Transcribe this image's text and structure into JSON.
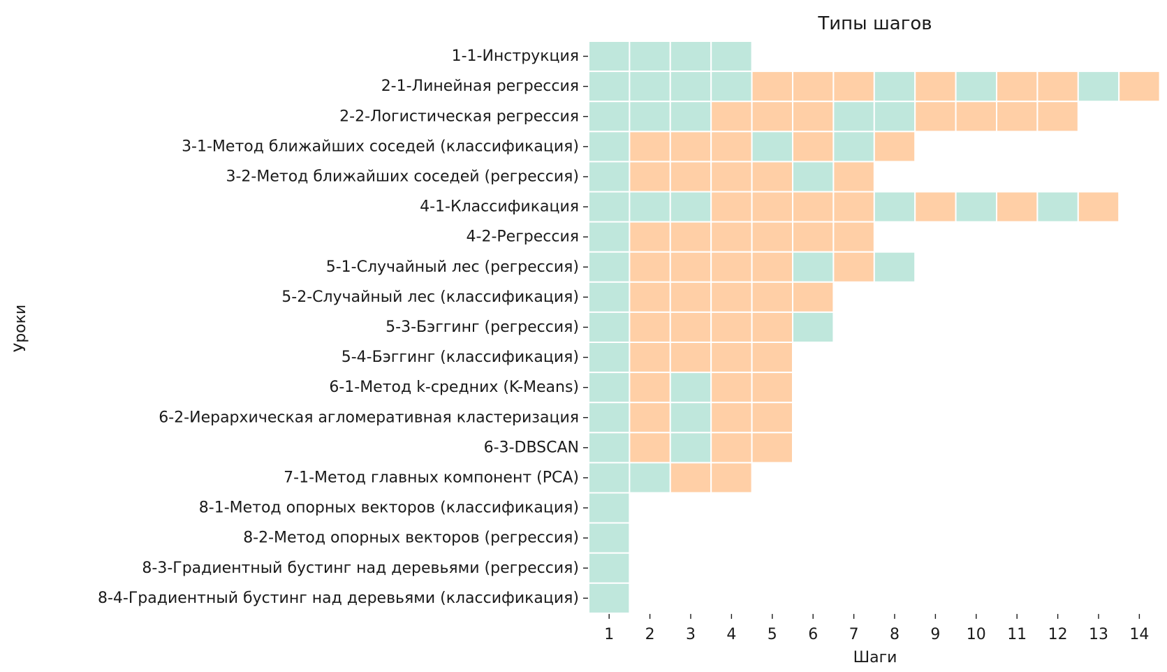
{
  "chart_data": {
    "type": "heatmap",
    "title": "Типы шагов",
    "xlabel": "Шаги",
    "ylabel": "Уроки",
    "x": [
      "1",
      "2",
      "3",
      "4",
      "5",
      "6",
      "7",
      "8",
      "9",
      "10",
      "11",
      "12",
      "13",
      "14"
    ],
    "colors": {
      "T": "#bfe7dc",
      "P": "#ffcfa6"
    },
    "rows": [
      {
        "label": "1-1-Инструкция",
        "steps": [
          "T",
          "T",
          "T",
          "T"
        ]
      },
      {
        "label": "2-1-Линейная регрессия",
        "steps": [
          "T",
          "T",
          "T",
          "T",
          "P",
          "P",
          "P",
          "T",
          "P",
          "T",
          "P",
          "P",
          "T",
          "P"
        ]
      },
      {
        "label": "2-2-Логистическая регрессия",
        "steps": [
          "T",
          "T",
          "T",
          "P",
          "P",
          "P",
          "T",
          "T",
          "P",
          "P",
          "P",
          "P"
        ]
      },
      {
        "label": "3-1-Метод ближайших соседей (классификация)",
        "steps": [
          "T",
          "P",
          "P",
          "P",
          "T",
          "P",
          "T",
          "P"
        ]
      },
      {
        "label": "3-2-Метод ближайших соседей (регрессия)",
        "steps": [
          "T",
          "P",
          "P",
          "P",
          "P",
          "T",
          "P"
        ]
      },
      {
        "label": "4-1-Классификация",
        "steps": [
          "T",
          "T",
          "T",
          "P",
          "P",
          "P",
          "P",
          "T",
          "P",
          "T",
          "P",
          "T",
          "P"
        ]
      },
      {
        "label": "4-2-Регрессия",
        "steps": [
          "T",
          "P",
          "P",
          "P",
          "P",
          "P",
          "P"
        ]
      },
      {
        "label": "5-1-Случайный лес (регрессия)",
        "steps": [
          "T",
          "P",
          "P",
          "P",
          "P",
          "T",
          "P",
          "T"
        ]
      },
      {
        "label": "5-2-Случайный лес (классификация)",
        "steps": [
          "T",
          "P",
          "P",
          "P",
          "P",
          "P"
        ]
      },
      {
        "label": "5-3-Бэггинг (регрессия)",
        "steps": [
          "T",
          "P",
          "P",
          "P",
          "P",
          "T"
        ]
      },
      {
        "label": "5-4-Бэггинг (классификация)",
        "steps": [
          "T",
          "P",
          "P",
          "P",
          "P"
        ]
      },
      {
        "label": "6-1-Метод k-средних (K-Means)",
        "steps": [
          "T",
          "P",
          "T",
          "P",
          "P"
        ]
      },
      {
        "label": "6-2-Иерархическая агломеративная кластеризация",
        "steps": [
          "T",
          "P",
          "T",
          "P",
          "P"
        ]
      },
      {
        "label": "6-3-DBSCAN",
        "steps": [
          "T",
          "P",
          "T",
          "P",
          "P"
        ]
      },
      {
        "label": "7-1-Метод главных компонент (PCA)",
        "steps": [
          "T",
          "T",
          "P",
          "P"
        ]
      },
      {
        "label": "8-1-Метод опорных векторов (классификация)",
        "steps": [
          "T"
        ]
      },
      {
        "label": "8-2-Метод опорных векторов (регрессия)",
        "steps": [
          "T"
        ]
      },
      {
        "label": "8-3-Градиентный бустинг над деревьями (регрессия)",
        "steps": [
          "T"
        ]
      },
      {
        "label": "8-4-Градиентный бустинг над деревьями (классификация)",
        "steps": [
          "T"
        ]
      }
    ]
  }
}
